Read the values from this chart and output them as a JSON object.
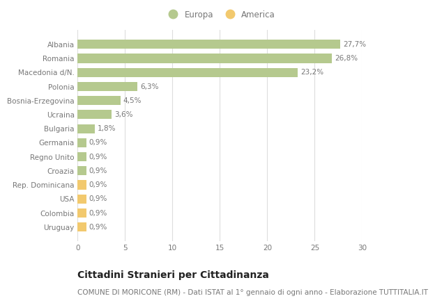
{
  "categories": [
    "Albania",
    "Romania",
    "Macedonia d/N.",
    "Polonia",
    "Bosnia-Erzegovina",
    "Ucraina",
    "Bulgaria",
    "Germania",
    "Regno Unito",
    "Croazia",
    "Rep. Dominicana",
    "USA",
    "Colombia",
    "Uruguay"
  ],
  "values": [
    27.7,
    26.8,
    23.2,
    6.3,
    4.5,
    3.6,
    1.8,
    0.9,
    0.9,
    0.9,
    0.9,
    0.9,
    0.9,
    0.9
  ],
  "labels": [
    "27,7%",
    "26,8%",
    "23,2%",
    "6,3%",
    "4,5%",
    "3,6%",
    "1,8%",
    "0,9%",
    "0,9%",
    "0,9%",
    "0,9%",
    "0,9%",
    "0,9%",
    "0,9%"
  ],
  "colors": [
    "#b5c98e",
    "#b5c98e",
    "#b5c98e",
    "#b5c98e",
    "#b5c98e",
    "#b5c98e",
    "#b5c98e",
    "#b5c98e",
    "#b5c98e",
    "#b5c98e",
    "#f2c96e",
    "#f2c96e",
    "#f2c96e",
    "#f2c96e"
  ],
  "legend_europa_color": "#b5c98e",
  "legend_america_color": "#f2c96e",
  "title": "Cittadini Stranieri per Cittadinanza",
  "subtitle": "COMUNE DI MORICONE (RM) - Dati ISTAT al 1° gennaio di ogni anno - Elaborazione TUTTITALIA.IT",
  "xlim": [
    0,
    30
  ],
  "xticks": [
    0,
    5,
    10,
    15,
    20,
    25,
    30
  ],
  "background_color": "#ffffff",
  "bar_height": 0.65,
  "title_fontsize": 10,
  "subtitle_fontsize": 7.5,
  "label_fontsize": 7.5,
  "tick_fontsize": 7.5,
  "legend_fontsize": 8.5,
  "text_color": "#777777",
  "title_color": "#222222"
}
